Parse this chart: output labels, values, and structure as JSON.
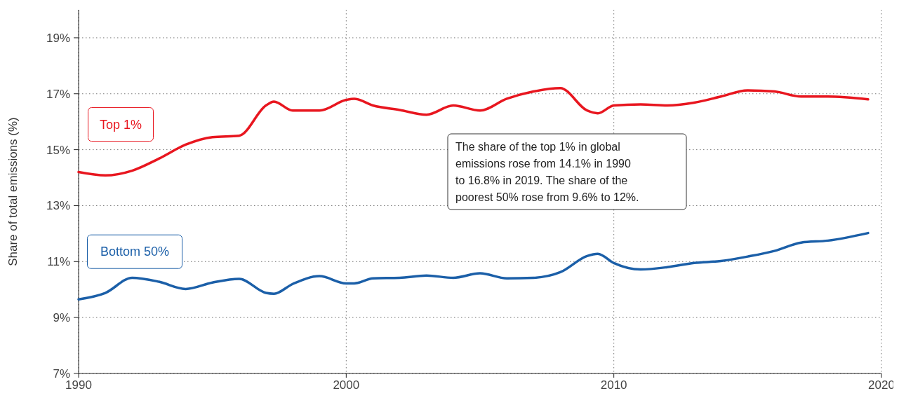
{
  "chart_data": {
    "type": "line",
    "ylabel": "Share of total emissions (%)",
    "x": [
      1990,
      1991,
      1992,
      1993,
      1994,
      1995,
      1996,
      1997,
      1997.3,
      1998,
      1999,
      2000,
      2000.3,
      2001,
      2002,
      2003,
      2004,
      2005,
      2006,
      2007,
      2008,
      2009,
      2009.4,
      2010,
      2011,
      2012,
      2013,
      2014,
      2015,
      2016,
      2017,
      2018,
      2019.5
    ],
    "series": [
      {
        "name": "Top 1%",
        "color": "#e8161f",
        "values": [
          14.2,
          14.08,
          14.25,
          14.68,
          15.18,
          15.45,
          15.5,
          16.58,
          16.72,
          16.4,
          16.4,
          16.78,
          16.82,
          16.58,
          16.42,
          16.25,
          16.58,
          16.4,
          16.82,
          17.08,
          17.2,
          16.4,
          16.3,
          16.58,
          16.62,
          16.58,
          16.68,
          16.9,
          17.12,
          17.08,
          16.9,
          16.9,
          16.8
        ]
      },
      {
        "name": "Bottom 50%",
        "color": "#1b5fa8",
        "values": [
          9.65,
          9.88,
          10.42,
          10.28,
          10.02,
          10.25,
          10.38,
          9.88,
          9.85,
          10.2,
          10.48,
          10.22,
          10.22,
          10.4,
          10.42,
          10.5,
          10.42,
          10.58,
          10.4,
          10.42,
          10.62,
          11.2,
          11.28,
          10.95,
          10.72,
          10.8,
          10.95,
          11.02,
          11.18,
          11.38,
          11.68,
          11.75,
          12.02
        ]
      }
    ],
    "xlim": [
      1990,
      2020
    ],
    "xticks": [
      1990,
      2000,
      2010,
      2020
    ],
    "ylim": [
      7,
      20
    ],
    "yticks": [
      {
        "value": 7,
        "label": "7%"
      },
      {
        "value": 9,
        "label": "9%"
      },
      {
        "value": 11,
        "label": "11%"
      },
      {
        "value": 13,
        "label": "13%"
      },
      {
        "value": 15,
        "label": "15%"
      },
      {
        "value": 17,
        "label": "17%"
      },
      {
        "value": 19,
        "label": "19%"
      }
    ],
    "grid": true,
    "line_style": "solid",
    "marker": "none",
    "annotations": [
      "The share of the top 1% in global emissions rose from 14.1% in 1990 to 16.8% in 2019. The share of the poorest 50% rose from 9.6% to 12%."
    ]
  }
}
